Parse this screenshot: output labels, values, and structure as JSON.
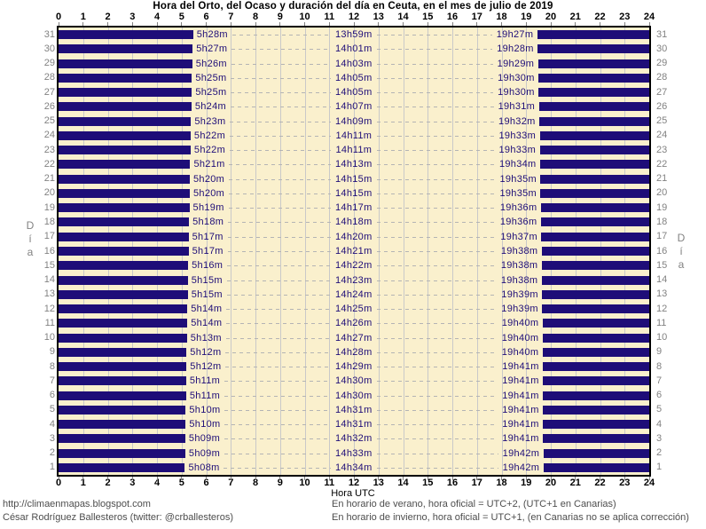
{
  "chart_data": {
    "type": "bar",
    "orientation": "horizontal-stacked",
    "description": "Daily sunrise (orto), sunset (ocaso) and day length (duración) for each day of July 2019 in Ceuta. Navy bars are night hours (00h to sunrise, sunset to 24h); cream area is daylight.",
    "title": "Hora del Orto, del Ocaso y duración del día en Ceuta, en el mes de julio de 2019",
    "xlabel": "Hora UTC",
    "ylabel": "Día",
    "xlim": [
      0,
      24
    ],
    "x_ticks": [
      "0",
      "1",
      "2",
      "3",
      "4",
      "5",
      "6",
      "7",
      "8",
      "9",
      "10",
      "11",
      "12",
      "13",
      "14",
      "15",
      "16",
      "17",
      "18",
      "19",
      "20",
      "21",
      "22",
      "23",
      "24"
    ],
    "grid": true,
    "days": [
      {
        "day": 31,
        "orto": "5h28m",
        "duracion": "13h59m",
        "ocaso": "19h27m"
      },
      {
        "day": 30,
        "orto": "5h27m",
        "duracion": "14h01m",
        "ocaso": "19h28m"
      },
      {
        "day": 29,
        "orto": "5h26m",
        "duracion": "14h03m",
        "ocaso": "19h29m"
      },
      {
        "day": 28,
        "orto": "5h25m",
        "duracion": "14h05m",
        "ocaso": "19h30m"
      },
      {
        "day": 27,
        "orto": "5h25m",
        "duracion": "14h05m",
        "ocaso": "19h30m"
      },
      {
        "day": 26,
        "orto": "5h24m",
        "duracion": "14h07m",
        "ocaso": "19h31m"
      },
      {
        "day": 25,
        "orto": "5h23m",
        "duracion": "14h09m",
        "ocaso": "19h32m"
      },
      {
        "day": 24,
        "orto": "5h22m",
        "duracion": "14h11m",
        "ocaso": "19h33m"
      },
      {
        "day": 23,
        "orto": "5h22m",
        "duracion": "14h11m",
        "ocaso": "19h33m"
      },
      {
        "day": 22,
        "orto": "5h21m",
        "duracion": "14h13m",
        "ocaso": "19h34m"
      },
      {
        "day": 21,
        "orto": "5h20m",
        "duracion": "14h15m",
        "ocaso": "19h35m"
      },
      {
        "day": 20,
        "orto": "5h20m",
        "duracion": "14h15m",
        "ocaso": "19h35m"
      },
      {
        "day": 19,
        "orto": "5h19m",
        "duracion": "14h17m",
        "ocaso": "19h36m"
      },
      {
        "day": 18,
        "orto": "5h18m",
        "duracion": "14h18m",
        "ocaso": "19h36m"
      },
      {
        "day": 17,
        "orto": "5h17m",
        "duracion": "14h20m",
        "ocaso": "19h37m"
      },
      {
        "day": 16,
        "orto": "5h17m",
        "duracion": "14h21m",
        "ocaso": "19h38m"
      },
      {
        "day": 15,
        "orto": "5h16m",
        "duracion": "14h22m",
        "ocaso": "19h38m"
      },
      {
        "day": 14,
        "orto": "5h15m",
        "duracion": "14h23m",
        "ocaso": "19h38m"
      },
      {
        "day": 13,
        "orto": "5h15m",
        "duracion": "14h24m",
        "ocaso": "19h39m"
      },
      {
        "day": 12,
        "orto": "5h14m",
        "duracion": "14h25m",
        "ocaso": "19h39m"
      },
      {
        "day": 11,
        "orto": "5h14m",
        "duracion": "14h26m",
        "ocaso": "19h40m"
      },
      {
        "day": 10,
        "orto": "5h13m",
        "duracion": "14h27m",
        "ocaso": "19h40m"
      },
      {
        "day": 9,
        "orto": "5h12m",
        "duracion": "14h28m",
        "ocaso": "19h40m"
      },
      {
        "day": 8,
        "orto": "5h12m",
        "duracion": "14h29m",
        "ocaso": "19h41m"
      },
      {
        "day": 7,
        "orto": "5h11m",
        "duracion": "14h30m",
        "ocaso": "19h41m"
      },
      {
        "day": 6,
        "orto": "5h11m",
        "duracion": "14h30m",
        "ocaso": "19h41m"
      },
      {
        "day": 5,
        "orto": "5h10m",
        "duracion": "14h31m",
        "ocaso": "19h41m"
      },
      {
        "day": 4,
        "orto": "5h10m",
        "duracion": "14h31m",
        "ocaso": "19h41m"
      },
      {
        "day": 3,
        "orto": "5h09m",
        "duracion": "14h32m",
        "ocaso": "19h41m"
      },
      {
        "day": 2,
        "orto": "5h09m",
        "duracion": "14h33m",
        "ocaso": "19h42m"
      },
      {
        "day": 1,
        "orto": "5h08m",
        "duracion": "14h34m",
        "ocaso": "19h42m"
      }
    ]
  },
  "colors": {
    "night_bar": "#1e0d78",
    "day_area": "#faf0cd",
    "grid_line": "#c9c9c9",
    "leader_dash": "#b4b4b4",
    "frame": "#000000",
    "day_number": "#828282",
    "time_label": "#1e0d78",
    "axis_number": "#000000",
    "footer_text": "#4d4d4d",
    "background": "#ffffff"
  },
  "footer": {
    "left_lines": [
      "http://climaenmapas.blogspot.com",
      "César Rodríguez Ballesteros (twitter: @crballesteros)"
    ],
    "right_lines": [
      "En horario de verano, hora oficial = UTC+2, (UTC+1 en Canarias)",
      "En horario de invierno, hora oficial = UTC+1, (en Canarias no se aplica corrección)"
    ]
  }
}
